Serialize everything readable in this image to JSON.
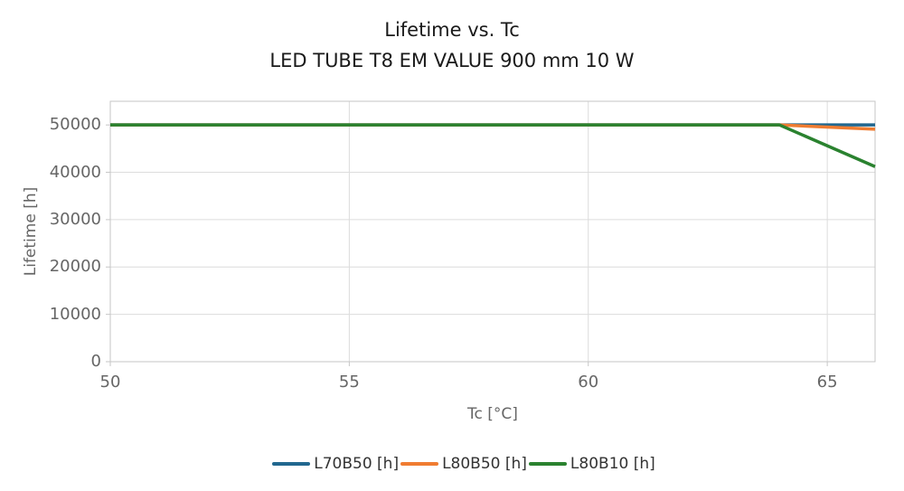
{
  "title": {
    "line1": "Lifetime vs. Tc",
    "line2": "LED TUBE T8 EM VALUE 900 mm 10 W"
  },
  "chart_data": {
    "type": "line",
    "title": "Lifetime vs. Tc — LED TUBE T8 EM VALUE 900 mm 10 W",
    "xlabel": "Tc [°C]",
    "ylabel": "Lifetime [h]",
    "xlim": [
      50,
      66
    ],
    "ylim": [
      0,
      55000
    ],
    "xticks": [
      50,
      55,
      60,
      65
    ],
    "yticks": [
      0,
      10000,
      20000,
      30000,
      40000,
      50000
    ],
    "grid": true,
    "legend_position": "bottom",
    "series": [
      {
        "name": "L70B50 [h]",
        "color": "#21678f",
        "points": [
          [
            50,
            50000
          ],
          [
            64,
            50000
          ],
          [
            66,
            50000
          ]
        ]
      },
      {
        "name": "L80B50 [h]",
        "color": "#f07c31",
        "points": [
          [
            50,
            50000
          ],
          [
            64,
            50000
          ],
          [
            66,
            49100
          ]
        ]
      },
      {
        "name": "L80B10 [h]",
        "color": "#2a822f",
        "points": [
          [
            50,
            50000
          ],
          [
            64,
            50000
          ],
          [
            66,
            41200
          ]
        ]
      }
    ]
  },
  "style": {
    "grid_color": "#dcdcdc",
    "border_color": "#c6c6c6",
    "tick_color": "#c6c6c6",
    "tick_label_color": "#666666",
    "title_color": "#1a1a1a"
  }
}
